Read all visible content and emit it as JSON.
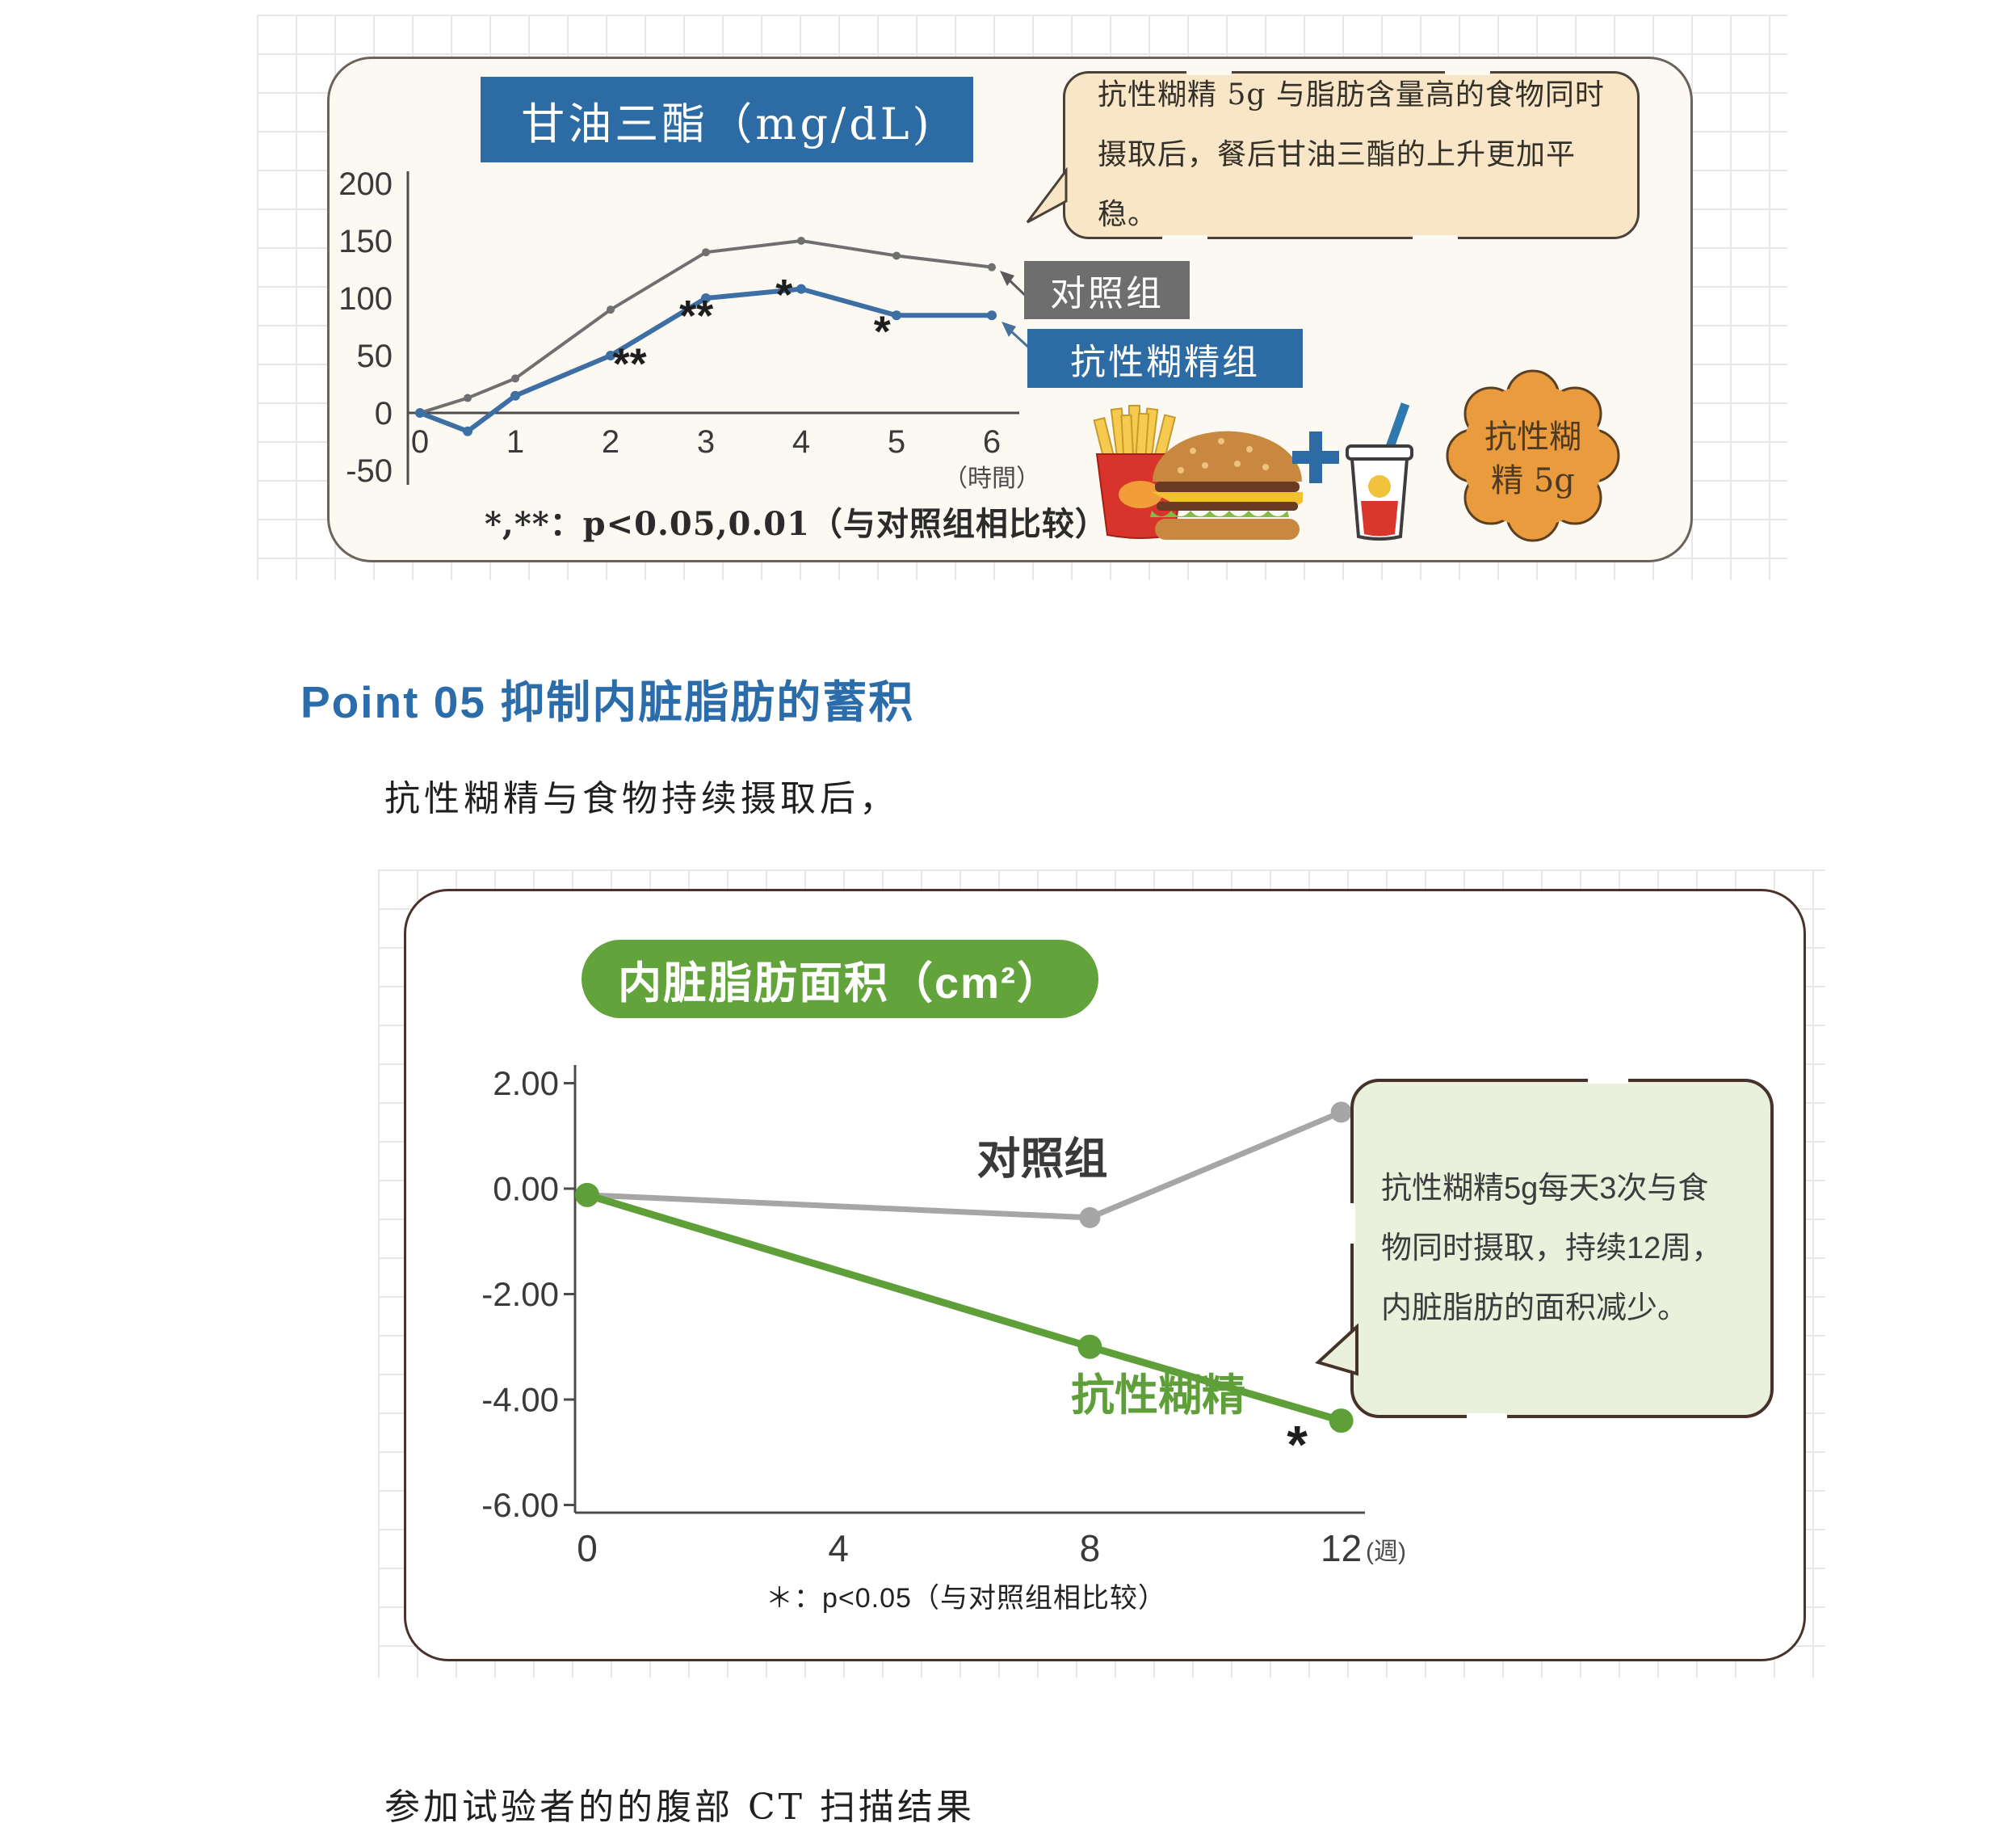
{
  "colors": {
    "accent_blue": "#2c6ba4",
    "heading_blue": "#2b6cab",
    "control_gray": "#6f6f6f",
    "dextrin_blue": "#3e6fa4",
    "title_green": "#63a33c",
    "line_green": "#5f9f39",
    "line_gray_light": "#a6a6a6",
    "bubble1_bg": "#f9e6c6",
    "bubble2_bg": "#e9f0dc",
    "badge_orange": "#e99b3e"
  },
  "panel1": {
    "title": "甘油三酯（mg/dL)",
    "bubble": {
      "line1": "抗性糊精 5g 与脂肪含量高的食物同时",
      "line2": "摄取后，餐后甘油三酯的上升更加平稳。"
    },
    "legend": {
      "control": "对照组",
      "dextrin": "抗性糊精组"
    },
    "badge": {
      "line1": "抗性糊",
      "line2": "精 5g"
    },
    "footnote": "*,**：p<0.05,0.01（与对照组相比较）"
  },
  "heading": "Point 05 抑制内脏脂肪的蓄积",
  "para1": "抗性糊精与食物持续摄取后，",
  "panel2": {
    "title": "内脏脂肪面积（cm²）",
    "bubble_lines": [
      "抗性糊精5g每天3次与食",
      "物同时摄取，持续12周，",
      "内脏脂肪的面积减少。"
    ],
    "footnote": "＊：p<0.05（与对照组相比较）"
  },
  "para2": "参加试验者的的腹部 CT 扫描结果",
  "chart_data": [
    {
      "type": "line",
      "title": "甘油三酯（mg/dL)",
      "xlabel": "時間",
      "xunit": "（時間）",
      "ylim": [
        -50,
        200
      ],
      "yticks": [
        200,
        150,
        100,
        50,
        0,
        -50
      ],
      "xticks": [
        0,
        1,
        2,
        3,
        4,
        5,
        6
      ],
      "x": [
        0,
        0.5,
        1,
        2,
        3,
        4,
        5,
        6
      ],
      "series": [
        {
          "name": "对照组",
          "color": "#6f6f6f",
          "w": 4,
          "r": 5,
          "values": [
            0,
            13,
            30,
            90,
            140,
            150,
            137,
            127
          ]
        },
        {
          "name": "抗性糊精组",
          "color": "#3e6fa4",
          "w": 6,
          "r": 6,
          "values": [
            0,
            -16,
            15,
            50,
            100,
            108,
            85,
            85
          ]
        }
      ],
      "annotations": [
        {
          "text": "**",
          "t": 2.2,
          "v": 30
        },
        {
          "text": "**",
          "t": 2.9,
          "v": 72
        },
        {
          "text": "*",
          "t": 3.82,
          "v": 90
        },
        {
          "text": "*",
          "t": 4.85,
          "v": 58
        }
      ]
    },
    {
      "type": "line",
      "title": "内脏脂肪面积（cm²）",
      "xlabel": "週",
      "xunit": "(週)",
      "ylim": [
        -6,
        2
      ],
      "yticks": [
        "2.00",
        "0.00",
        "-2.00",
        "-4.00",
        "-6.00"
      ],
      "xticks": [
        0,
        4,
        8,
        12
      ],
      "x": [
        0,
        8,
        12
      ],
      "series": [
        {
          "name": "对照组",
          "color": "#a6a6a6",
          "w": 7,
          "r": 13,
          "values": [
            -0.12,
            -0.55,
            1.45
          ]
        },
        {
          "name": "抗性糊精",
          "color": "#5f9f39",
          "w": 9,
          "r": 15,
          "values": [
            -0.12,
            -3.0,
            -4.4
          ]
        }
      ],
      "annotations": [
        {
          "text": "*",
          "t": 11.3,
          "v": -5.2
        }
      ],
      "series_labels": [
        {
          "text": "对照组",
          "t": 6.2,
          "v": 0.28,
          "size": 54,
          "color": "#3a3a3a"
        },
        {
          "text": "抗性糊精",
          "t": 7.7,
          "v": -4.2,
          "size": 54,
          "color": "#5f9f39"
        }
      ]
    }
  ]
}
